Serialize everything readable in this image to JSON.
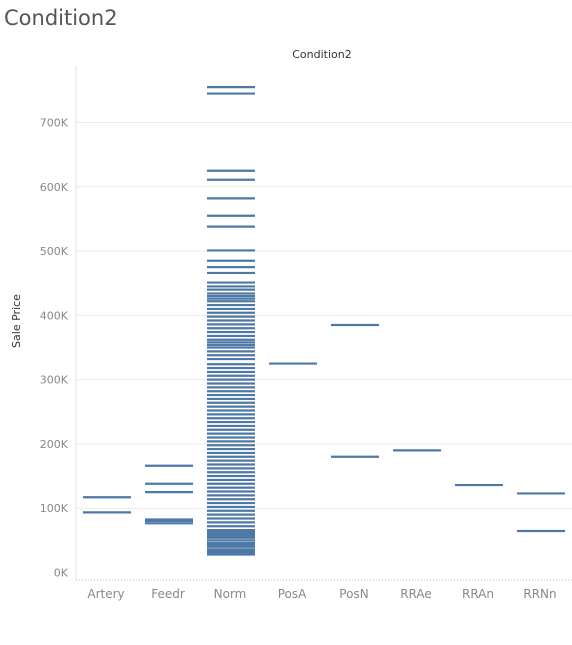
{
  "page_title": "Condition2",
  "colors": {
    "mark": "#4e79a7",
    "gridline": "#ececec",
    "axis_text": "#888888"
  },
  "chart_data": {
    "type": "strip",
    "title": "Condition2",
    "xlabel": "",
    "ylabel": "Sale Price",
    "ylim": [
      0,
      760000
    ],
    "yticks": [
      0,
      100000,
      200000,
      300000,
      400000,
      500000,
      600000,
      700000
    ],
    "ytick_labels": [
      "0K",
      "100K",
      "200K",
      "300K",
      "400K",
      "500K",
      "600K",
      "700K"
    ],
    "grid": true,
    "categories": [
      "Artery",
      "Feedr",
      "Norm",
      "PosA",
      "PosN",
      "RRAe",
      "RRAn",
      "RRNn"
    ],
    "values": {
      "Artery": [
        93500,
        117000
      ],
      "Feedr": [
        76500,
        80000,
        82500,
        125000,
        138000,
        166000
      ],
      "Norm": [
        28000,
        31000,
        34000,
        36000,
        40000,
        43000,
        46000,
        50000,
        54000,
        57000,
        60000,
        63000,
        66000,
        72000,
        78000,
        84000,
        90000,
        96000,
        102000,
        108000,
        114000,
        120000,
        126000,
        132000,
        138000,
        144000,
        150000,
        156000,
        162000,
        168000,
        174000,
        180000,
        186000,
        192000,
        198000,
        204000,
        210000,
        216000,
        222000,
        228000,
        234000,
        240000,
        246000,
        252000,
        258000,
        264000,
        270000,
        276000,
        282000,
        288000,
        294000,
        300000,
        306000,
        312000,
        318000,
        324000,
        332000,
        338000,
        344000,
        350000,
        354000,
        358000,
        362000,
        368000,
        374000,
        380000,
        386000,
        392000,
        398000,
        404000,
        410000,
        416000,
        422000,
        426000,
        430000,
        434000,
        440000,
        445000,
        451000,
        466000,
        475000,
        485000,
        501000,
        538000,
        555000,
        582000,
        611000,
        625000,
        745000,
        755000
      ],
      "PosA": [
        325000
      ],
      "PosN": [
        180000,
        385000
      ],
      "RRAe": [
        190000
      ],
      "RRAn": [
        136000
      ],
      "RRNn": [
        64500,
        123000
      ]
    }
  }
}
